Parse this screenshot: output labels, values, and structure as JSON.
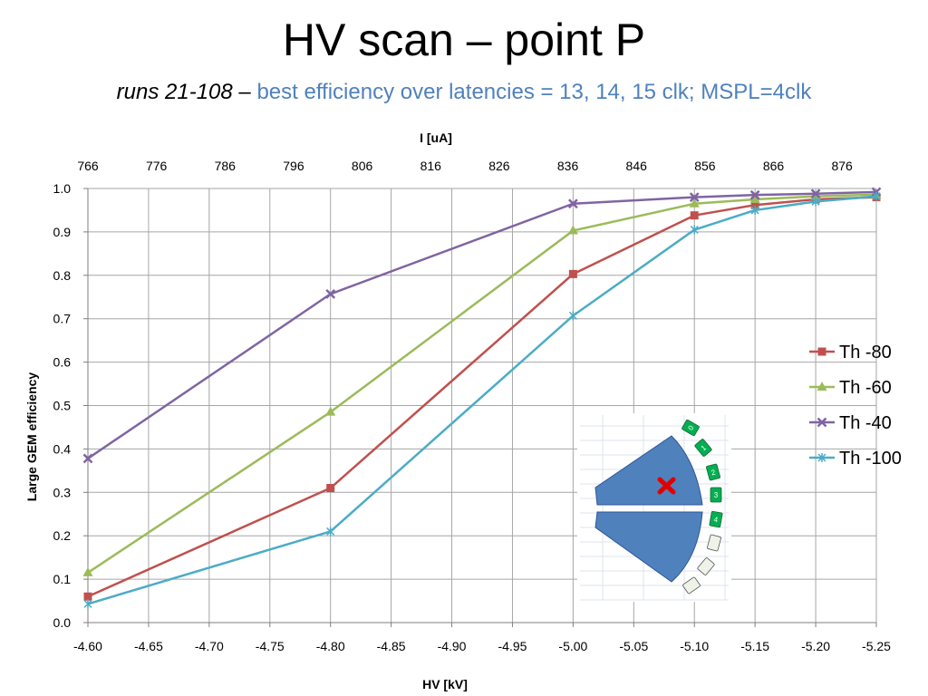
{
  "slide": {
    "title": "HV scan – point P",
    "subtitle_runs": "runs 21-108",
    "subtitle_dash": " – ",
    "subtitle_desc": "best efficiency over latencies = 13, 14, 15 clk; MSPL=4clk"
  },
  "chart_data": {
    "type": "line",
    "title": "",
    "xlabel": "HV [kV]",
    "ylabel": "Large GEM efficiency",
    "x2label": "I [uA]",
    "x_ticks": [
      "-4.60",
      "-4.65",
      "-4.70",
      "-4.75",
      "-4.80",
      "-4.85",
      "-4.90",
      "-4.95",
      "-5.00",
      "-5.05",
      "-5.10",
      "-5.15",
      "-5.20",
      "-5.25"
    ],
    "x2_ticks": [
      "766",
      "776",
      "786",
      "796",
      "806",
      "816",
      "826",
      "836",
      "846",
      "856",
      "866",
      "876"
    ],
    "y_ticks": [
      "0.0",
      "0.1",
      "0.2",
      "0.3",
      "0.4",
      "0.5",
      "0.6",
      "0.7",
      "0.8",
      "0.9",
      "1.0"
    ],
    "xlim": [
      -4.6,
      -5.25
    ],
    "ylim": [
      0,
      1
    ],
    "grid": true,
    "legend_position": "right",
    "x": [
      -4.6,
      -4.8,
      -5.0,
      -5.1,
      -5.15,
      -5.2,
      -5.25
    ],
    "series": [
      {
        "name": "Th -80",
        "color": "#C0504D",
        "marker": "square",
        "values": [
          0.06,
          0.31,
          0.803,
          0.938,
          0.962,
          0.975,
          0.98
        ]
      },
      {
        "name": "Th -60",
        "color": "#9BBB59",
        "marker": "triangle",
        "values": [
          0.115,
          0.485,
          0.903,
          0.965,
          0.975,
          0.982,
          0.986
        ]
      },
      {
        "name": "Th -40",
        "color": "#8064A2",
        "marker": "x",
        "values": [
          0.378,
          0.757,
          0.965,
          0.98,
          0.985,
          0.988,
          0.992
        ]
      },
      {
        "name": "Th -100",
        "color": "#4BACC6",
        "marker": "star",
        "values": [
          0.043,
          0.21,
          0.707,
          0.905,
          0.95,
          0.97,
          0.982
        ]
      }
    ],
    "inset": {
      "description": "detector sector map",
      "sector_labels": [
        "0",
        "1",
        "2",
        "3",
        "4"
      ],
      "sector_color": "#00B050",
      "body_color": "#4F81BD",
      "marker_color": "#E00000"
    }
  }
}
